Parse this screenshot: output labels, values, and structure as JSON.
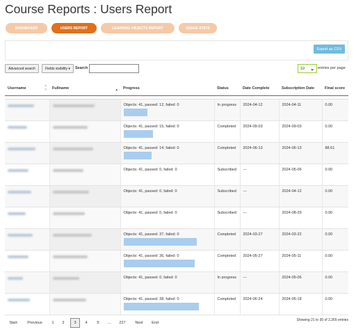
{
  "page_title": "Course Reports : Users Report",
  "tabs": [
    {
      "label": "DASHBOARD",
      "active": false
    },
    {
      "label": "USERS REPORT",
      "active": true
    },
    {
      "label": "LEARNING OBJECTS REPORT",
      "active": false
    },
    {
      "label": "USAGE STATS",
      "active": false
    }
  ],
  "export_label": "Export as CSV",
  "controls": {
    "advanced_search": "Advanced search",
    "fields_visibility": "Fields visibility ▾",
    "search_label": "Search",
    "search_value": "",
    "page_length": "10",
    "entries_label": "entries per page"
  },
  "columns": [
    "Username",
    "Fullname",
    "Progress",
    "Status",
    "Date Complete",
    "Subscription Date",
    "Final score"
  ],
  "rows": [
    {
      "progress": "Objects: 41, passed: 12, failed: 0",
      "passed": 12,
      "total": 41,
      "status": "In progress",
      "date_complete": "2024-04-12",
      "subscription_date": "2024-04-11",
      "final_score": "0.00"
    },
    {
      "progress": "Objects: 41, passed: 15, failed: 0",
      "passed": 15,
      "total": 41,
      "status": "Completed",
      "date_complete": "2024-09-03",
      "subscription_date": "2024-09-03",
      "final_score": "0.00"
    },
    {
      "progress": "Objects: 41, passed: 14, failed: 0",
      "passed": 14,
      "total": 41,
      "status": "Completed",
      "date_complete": "2024-06-13",
      "subscription_date": "2024-06-13",
      "final_score": "88.61"
    },
    {
      "progress": "Objects: 41, passed: 0, failed: 0",
      "passed": 0,
      "total": 41,
      "status": "Subscribed",
      "date_complete": "---",
      "subscription_date": "2024-05-06",
      "final_score": "0.00"
    },
    {
      "progress": "Objects: 41, passed: 0, failed: 0",
      "passed": 0,
      "total": 41,
      "status": "Subscribed",
      "date_complete": "---",
      "subscription_date": "2024-04-12",
      "final_score": "0.00"
    },
    {
      "progress": "Objects: 41, passed: 0, failed: 0",
      "passed": 0,
      "total": 41,
      "status": "Subscribed",
      "date_complete": "---",
      "subscription_date": "2024-08-29",
      "final_score": "0.00"
    },
    {
      "progress": "Objects: 41, passed: 37, failed: 0",
      "passed": 37,
      "total": 41,
      "status": "Completed",
      "date_complete": "2024-03-27",
      "subscription_date": "2024-03-22",
      "final_score": "0.00"
    },
    {
      "progress": "Objects: 41, passed: 36, failed: 0",
      "passed": 36,
      "total": 41,
      "status": "Completed",
      "date_complete": "2024-05-27",
      "subscription_date": "2024-05-11",
      "final_score": "0.00"
    },
    {
      "progress": "Objects: 41, passed: 0, failed: 0",
      "passed": 0,
      "total": 41,
      "status": "In progress",
      "date_complete": "---",
      "subscription_date": "2024-05-06",
      "final_score": "0.00"
    },
    {
      "progress": "Objects: 41, passed: 38, failed: 0",
      "passed": 38,
      "total": 41,
      "status": "Completed",
      "date_complete": "2024-06-24",
      "subscription_date": "2024-05-18",
      "final_score": "0.00"
    }
  ],
  "pagination": {
    "start": "Start",
    "previous": "Previous",
    "pages": [
      "1",
      "2",
      "3",
      "4",
      "5",
      "...",
      "227"
    ],
    "current": "3",
    "next": "Next",
    "end": "End",
    "info": "Showing 21 to 30 of 2,265 entries"
  },
  "colors": {
    "accent": "#e0701c",
    "tab_inactive": "#f6c9a6",
    "export": "#6fbcdf",
    "progress_bar": "#a9cdee"
  }
}
